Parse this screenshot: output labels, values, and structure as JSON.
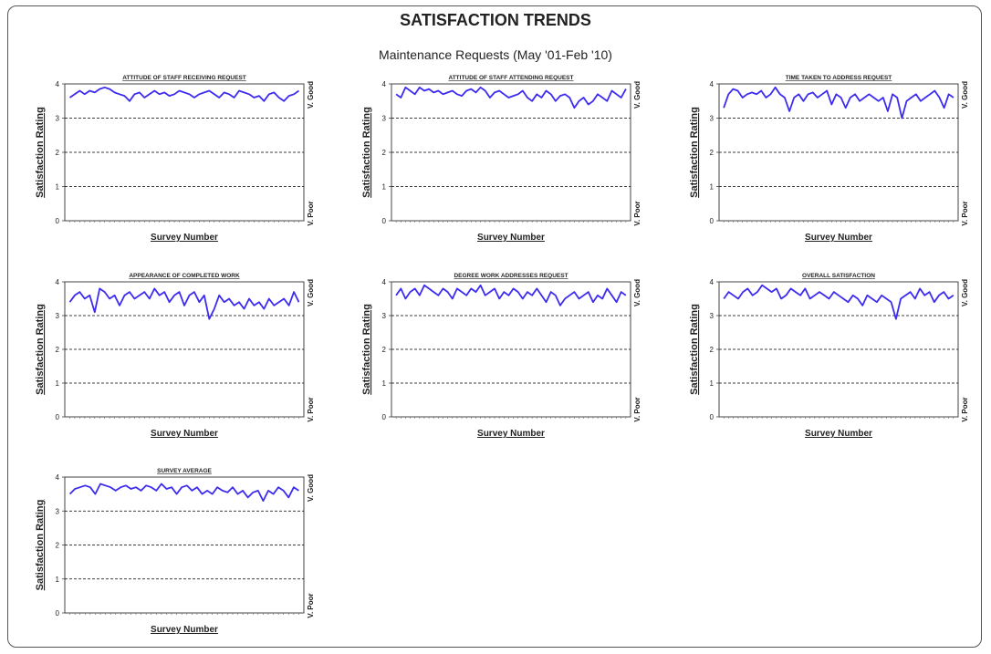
{
  "header": {
    "text": ""
  },
  "title": "SATISFACTION TRENDS",
  "subtitle": "Maintenance Requests (May '01-Feb '10)",
  "colors": {
    "line": "#3d2cf0",
    "grid": "#000000",
    "border": "#555555"
  },
  "chart_data": [
    {
      "type": "line",
      "title": "ATTITUDE OF STAFF RECEIVING REQUEST",
      "xlabel": "Survey Number",
      "ylabel": "Satisfaction Rating",
      "right_top_label": "V. Good",
      "right_bottom_label": "V. Poor",
      "ylim": [
        0,
        4
      ],
      "yticks": [
        "0",
        "1",
        "2",
        "3",
        "4"
      ],
      "gridlines": [
        1,
        2,
        3
      ],
      "values": [
        3.6,
        3.7,
        3.8,
        3.7,
        3.8,
        3.75,
        3.85,
        3.9,
        3.85,
        3.75,
        3.7,
        3.65,
        3.5,
        3.7,
        3.75,
        3.6,
        3.7,
        3.8,
        3.7,
        3.75,
        3.65,
        3.7,
        3.8,
        3.75,
        3.7,
        3.6,
        3.7,
        3.75,
        3.8,
        3.7,
        3.6,
        3.75,
        3.7,
        3.6,
        3.8,
        3.75,
        3.7,
        3.6,
        3.65,
        3.5,
        3.7,
        3.75,
        3.6,
        3.5,
        3.65,
        3.7,
        3.8
      ]
    },
    {
      "type": "line",
      "title": "ATTITUDE OF STAFF ATTENDING REQUEST",
      "xlabel": "Survey Number",
      "ylabel": "Satisfaction Rating",
      "right_top_label": "V. Good",
      "right_bottom_label": "V. Poor",
      "ylim": [
        0,
        4
      ],
      "yticks": [
        "0",
        "1",
        "2",
        "3",
        "4"
      ],
      "gridlines": [
        1,
        2,
        3
      ],
      "values": [
        3.7,
        3.6,
        3.9,
        3.8,
        3.7,
        3.9,
        3.8,
        3.85,
        3.75,
        3.8,
        3.7,
        3.75,
        3.8,
        3.7,
        3.65,
        3.8,
        3.85,
        3.75,
        3.9,
        3.8,
        3.6,
        3.75,
        3.8,
        3.7,
        3.6,
        3.65,
        3.7,
        3.8,
        3.6,
        3.5,
        3.7,
        3.6,
        3.8,
        3.7,
        3.5,
        3.65,
        3.7,
        3.6,
        3.3,
        3.5,
        3.6,
        3.4,
        3.5,
        3.7,
        3.6,
        3.5,
        3.8,
        3.7,
        3.6,
        3.85
      ]
    },
    {
      "type": "line",
      "title": "TIME TAKEN TO ADDRESS REQUEST",
      "xlabel": "Survey Number",
      "ylabel": "Satisfaction Rating",
      "right_top_label": "V. Good",
      "right_bottom_label": "V. Poor",
      "ylim": [
        0,
        4
      ],
      "yticks": [
        "0",
        "1",
        "2",
        "3",
        "4"
      ],
      "gridlines": [
        1,
        2,
        3
      ],
      "values": [
        3.3,
        3.7,
        3.85,
        3.8,
        3.6,
        3.7,
        3.75,
        3.7,
        3.8,
        3.6,
        3.7,
        3.9,
        3.7,
        3.6,
        3.2,
        3.6,
        3.7,
        3.5,
        3.7,
        3.75,
        3.6,
        3.7,
        3.8,
        3.4,
        3.7,
        3.6,
        3.3,
        3.6,
        3.7,
        3.5,
        3.6,
        3.7,
        3.6,
        3.5,
        3.6,
        3.2,
        3.7,
        3.6,
        3.0,
        3.5,
        3.6,
        3.7,
        3.5,
        3.6,
        3.7,
        3.8,
        3.6,
        3.3,
        3.7,
        3.6
      ]
    },
    {
      "type": "line",
      "title": "APPEARANCE OF COMPLETED WORK",
      "xlabel": "Survey Number",
      "ylabel": "Satisfaction Rating",
      "right_top_label": "V. Good",
      "right_bottom_label": "V. Poor",
      "ylim": [
        0,
        4
      ],
      "yticks": [
        "0",
        "1",
        "2",
        "3",
        "4"
      ],
      "gridlines": [
        1,
        2,
        3
      ],
      "values": [
        3.4,
        3.6,
        3.7,
        3.5,
        3.6,
        3.1,
        3.8,
        3.7,
        3.5,
        3.6,
        3.3,
        3.6,
        3.7,
        3.5,
        3.6,
        3.7,
        3.5,
        3.8,
        3.6,
        3.7,
        3.4,
        3.6,
        3.7,
        3.3,
        3.6,
        3.7,
        3.4,
        3.6,
        2.9,
        3.2,
        3.6,
        3.4,
        3.5,
        3.3,
        3.4,
        3.2,
        3.5,
        3.3,
        3.4,
        3.2,
        3.5,
        3.3,
        3.4,
        3.5,
        3.3,
        3.7,
        3.4
      ]
    },
    {
      "type": "line",
      "title": "DEGREE WORK ADDRESSES REQUEST",
      "xlabel": "Survey Number",
      "ylabel": "Satisfaction Rating",
      "right_top_label": "V. Good",
      "right_bottom_label": "V. Poor",
      "ylim": [
        0,
        4
      ],
      "yticks": [
        "0",
        "1",
        "2",
        "3",
        "4"
      ],
      "gridlines": [
        1,
        2,
        3
      ],
      "values": [
        3.6,
        3.8,
        3.5,
        3.7,
        3.8,
        3.6,
        3.9,
        3.8,
        3.7,
        3.6,
        3.8,
        3.7,
        3.5,
        3.8,
        3.7,
        3.6,
        3.8,
        3.7,
        3.9,
        3.6,
        3.7,
        3.8,
        3.5,
        3.7,
        3.6,
        3.8,
        3.7,
        3.5,
        3.7,
        3.6,
        3.8,
        3.6,
        3.4,
        3.7,
        3.6,
        3.3,
        3.5,
        3.6,
        3.7,
        3.5,
        3.6,
        3.7,
        3.4,
        3.6,
        3.5,
        3.8,
        3.6,
        3.4,
        3.7,
        3.6
      ]
    },
    {
      "type": "line",
      "title": "OVERALL SATISFACTION",
      "xlabel": "Survey Number",
      "ylabel": "Satisfaction Rating",
      "right_top_label": "V. Good",
      "right_bottom_label": "V. Poor",
      "ylim": [
        0,
        4
      ],
      "yticks": [
        "0",
        "1",
        "2",
        "3",
        "4"
      ],
      "gridlines": [
        1,
        2,
        3
      ],
      "values": [
        3.5,
        3.7,
        3.6,
        3.5,
        3.7,
        3.8,
        3.6,
        3.7,
        3.9,
        3.8,
        3.7,
        3.8,
        3.5,
        3.6,
        3.8,
        3.7,
        3.6,
        3.8,
        3.5,
        3.6,
        3.7,
        3.6,
        3.5,
        3.7,
        3.6,
        3.5,
        3.4,
        3.6,
        3.5,
        3.3,
        3.6,
        3.5,
        3.4,
        3.6,
        3.5,
        3.4,
        2.9,
        3.5,
        3.6,
        3.7,
        3.5,
        3.8,
        3.6,
        3.7,
        3.4,
        3.6,
        3.7,
        3.5,
        3.6
      ]
    },
    {
      "type": "line",
      "title": "SURVEY AVERAGE",
      "xlabel": "Survey Number",
      "ylabel": "Satisfaction Rating",
      "right_top_label": "V. Good",
      "right_bottom_label": "V. Poor",
      "ylim": [
        0,
        4
      ],
      "yticks": [
        "0",
        "1",
        "2",
        "3",
        "4"
      ],
      "gridlines": [
        1,
        2,
        3
      ],
      "values": [
        3.5,
        3.65,
        3.7,
        3.75,
        3.7,
        3.5,
        3.8,
        3.75,
        3.7,
        3.6,
        3.7,
        3.75,
        3.65,
        3.7,
        3.6,
        3.75,
        3.7,
        3.6,
        3.8,
        3.65,
        3.7,
        3.5,
        3.7,
        3.75,
        3.6,
        3.7,
        3.5,
        3.6,
        3.5,
        3.7,
        3.6,
        3.55,
        3.7,
        3.5,
        3.6,
        3.4,
        3.55,
        3.6,
        3.3,
        3.6,
        3.5,
        3.7,
        3.6,
        3.4,
        3.7,
        3.6
      ]
    }
  ]
}
